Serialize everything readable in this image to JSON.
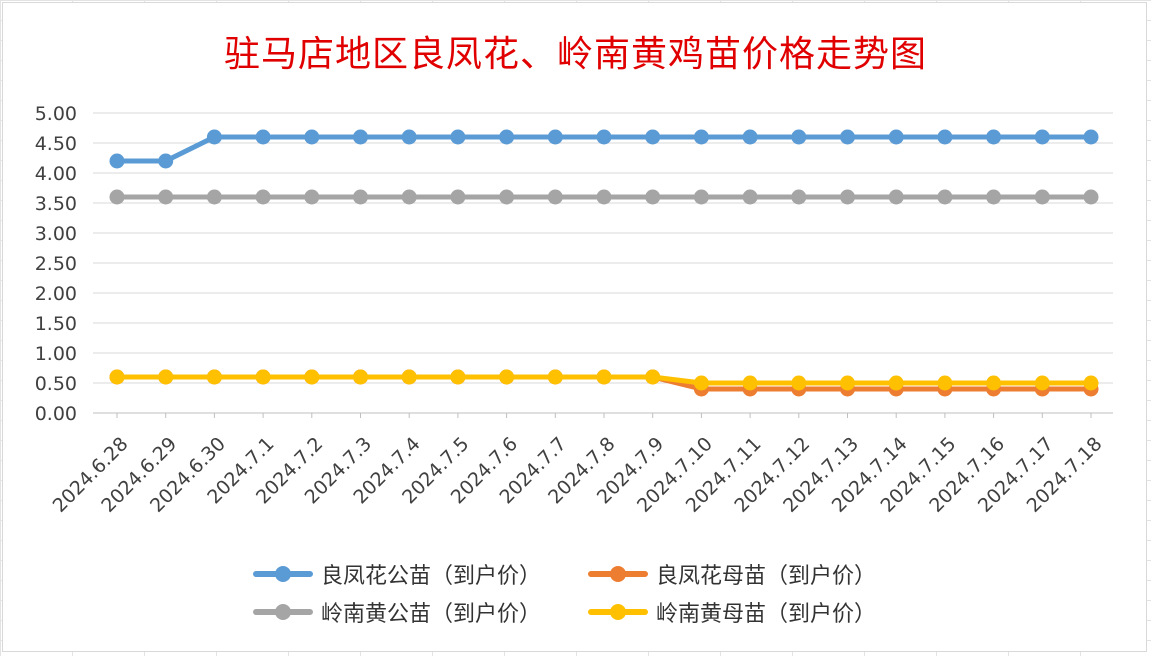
{
  "title": "驻马店地区良凤花、岭南黄鸡苗价格走势图",
  "chart_data": {
    "type": "line",
    "title": "驻马店地区良凤花、岭南黄鸡苗价格走势图",
    "categories": [
      "2024.6.28",
      "2024.6.29",
      "2024.6.30",
      "2024.7.1",
      "2024.7.2",
      "2024.7.3",
      "2024.7.4",
      "2024.7.5",
      "2024.7.6",
      "2024.7.7",
      "2024.7.8",
      "2024.7.9",
      "2024.7.10",
      "2024.7.11",
      "2024.7.12",
      "2024.7.13",
      "2024.7.14",
      "2024.7.15",
      "2024.7.16",
      "2024.7.17",
      "2024.7.18"
    ],
    "ylim": [
      0,
      5
    ],
    "yticks": [
      "0.00",
      "0.50",
      "1.00",
      "1.50",
      "2.00",
      "2.50",
      "3.00",
      "3.50",
      "4.00",
      "4.50",
      "5.00"
    ],
    "grid": true,
    "legend_position": "bottom",
    "series": [
      {
        "name": "良凤花公苗（到户价）",
        "color": "#5b9bd5",
        "values": [
          4.2,
          4.2,
          4.6,
          4.6,
          4.6,
          4.6,
          4.6,
          4.6,
          4.6,
          4.6,
          4.6,
          4.6,
          4.6,
          4.6,
          4.6,
          4.6,
          4.6,
          4.6,
          4.6,
          4.6,
          4.6
        ]
      },
      {
        "name": "良凤花母苗（到户价）",
        "color": "#ed7d31",
        "values": [
          0.6,
          0.6,
          0.6,
          0.6,
          0.6,
          0.6,
          0.6,
          0.6,
          0.6,
          0.6,
          0.6,
          0.6,
          0.4,
          0.4,
          0.4,
          0.4,
          0.4,
          0.4,
          0.4,
          0.4,
          0.4
        ]
      },
      {
        "name": "岭南黄公苗（到户价）",
        "color": "#a5a5a5",
        "values": [
          3.6,
          3.6,
          3.6,
          3.6,
          3.6,
          3.6,
          3.6,
          3.6,
          3.6,
          3.6,
          3.6,
          3.6,
          3.6,
          3.6,
          3.6,
          3.6,
          3.6,
          3.6,
          3.6,
          3.6,
          3.6
        ]
      },
      {
        "name": "岭南黄母苗（到户价）",
        "color": "#ffc000",
        "values": [
          0.6,
          0.6,
          0.6,
          0.6,
          0.6,
          0.6,
          0.6,
          0.6,
          0.6,
          0.6,
          0.6,
          0.6,
          0.5,
          0.5,
          0.5,
          0.5,
          0.5,
          0.5,
          0.5,
          0.5,
          0.5
        ]
      }
    ]
  }
}
